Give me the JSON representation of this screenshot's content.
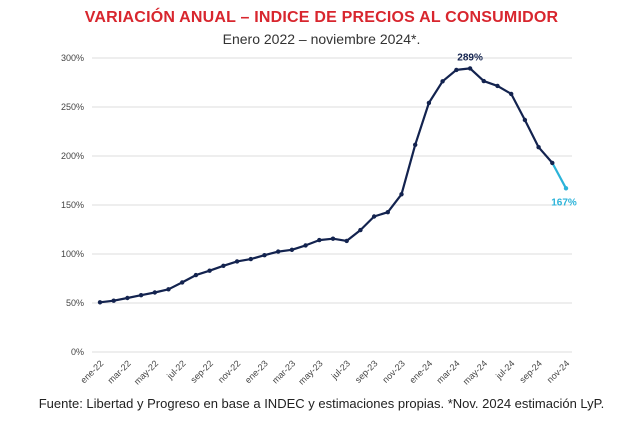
{
  "header": {
    "title": "VARIACIÓN ANUAL – INDICE DE PRECIOS AL CONSUMIDOR",
    "subtitle": "Enero 2022 – noviembre 2024*."
  },
  "footer": {
    "source": "Fuente: Libertad y Progreso en base a INDEC y estimaciones propias. *Nov. 2024 estimación LyP."
  },
  "colors": {
    "title": "#d8262e",
    "line": "#13234f",
    "estimate": "#2bb3d9",
    "grid": "#dddddd"
  },
  "chart_data": {
    "type": "line",
    "title": "VARIACIÓN ANUAL – INDICE DE PRECIOS AL CONSUMIDOR",
    "subtitle": "Enero 2022 – noviembre 2024*.",
    "xlabel": "",
    "ylabel": "",
    "ylim": [
      0,
      300
    ],
    "yticks": [
      "0%",
      "50%",
      "100%",
      "150%",
      "200%",
      "250%",
      "300%"
    ],
    "ytick_values": [
      0,
      50,
      100,
      150,
      200,
      250,
      300
    ],
    "grid": "horizontal",
    "x": [
      "ene-22",
      "feb-22",
      "mar-22",
      "abr-22",
      "may-22",
      "jun-22",
      "jul-22",
      "ago-22",
      "sep-22",
      "oct-22",
      "nov-22",
      "dic-22",
      "ene-23",
      "feb-23",
      "mar-23",
      "abr-23",
      "may-23",
      "jun-23",
      "jul-23",
      "ago-23",
      "sep-23",
      "oct-23",
      "nov-23",
      "dic-23",
      "ene-24",
      "feb-24",
      "mar-24",
      "abr-24",
      "may-24",
      "jun-24",
      "jul-24",
      "ago-24",
      "sep-24",
      "oct-24",
      "nov-24"
    ],
    "xtick_labels": [
      "ene-22",
      "mar-22",
      "may-22",
      "jul-22",
      "sep-22",
      "nov-22",
      "ene-23",
      "mar-23",
      "may-23",
      "jul-23",
      "sep-23",
      "nov-23",
      "ene-24",
      "mar-24",
      "may-24",
      "jul-24",
      "sep-24",
      "nov-24"
    ],
    "series": [
      {
        "values": [
          50.7,
          52.3,
          55.1,
          58.0,
          60.7,
          64.0,
          71.0,
          78.5,
          83.0,
          88.0,
          92.4,
          94.8,
          98.8,
          102.5,
          104.3,
          108.8,
          114.2,
          115.6,
          113.4,
          124.4,
          138.3,
          142.7,
          160.9,
          211.4,
          254.2,
          276.2,
          287.9,
          289.4,
          276.4,
          271.5,
          263.4,
          236.7,
          209.0,
          193.0,
          167.0
        ]
      }
    ],
    "estimate_from_index": 33,
    "annotations": [
      {
        "text": "289%",
        "index": 27
      },
      {
        "text": "167%",
        "index": 34
      }
    ]
  }
}
